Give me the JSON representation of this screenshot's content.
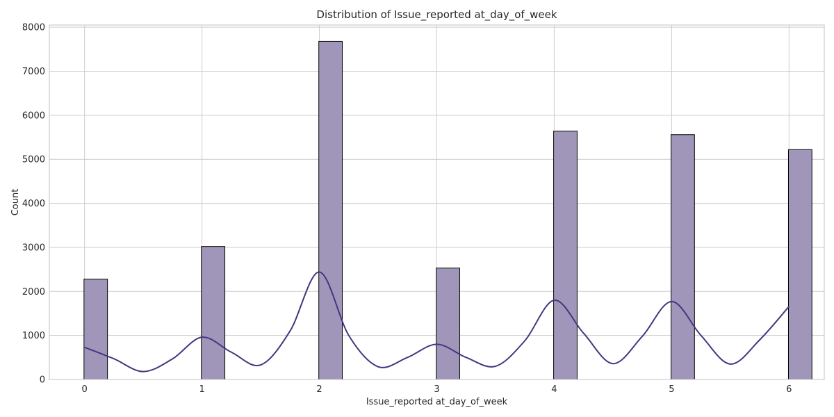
{
  "chart_data": {
    "type": "bar",
    "title": "Distribution of Issue_reported at_day_of_week",
    "xlabel": "Issue_reported at_day_of_week",
    "ylabel": "Count",
    "xlim": [
      -0.3,
      6.3
    ],
    "ylim": [
      0,
      8050
    ],
    "x_ticks": [
      0,
      1,
      2,
      3,
      4,
      5,
      6
    ],
    "y_ticks": [
      0,
      1000,
      2000,
      3000,
      4000,
      5000,
      6000,
      7000,
      8000
    ],
    "bin_width": 0.2,
    "bars": [
      {
        "x": 0,
        "value": 2280
      },
      {
        "x": 1,
        "value": 3020
      },
      {
        "x": 2,
        "value": 7680
      },
      {
        "x": 3,
        "value": 2530
      },
      {
        "x": 4,
        "value": 5640
      },
      {
        "x": 5,
        "value": 5560
      },
      {
        "x": 6,
        "value": 5220
      }
    ],
    "kde_line": {
      "x": [
        0,
        0.25,
        0.5,
        0.75,
        1,
        1.25,
        1.5,
        1.75,
        2,
        2.25,
        2.5,
        2.75,
        3,
        3.25,
        3.5,
        3.75,
        4,
        4.25,
        4.5,
        4.75,
        5,
        5.25,
        5.5,
        5.75,
        6
      ],
      "y": [
        730,
        470,
        180,
        470,
        960,
        620,
        330,
        1100,
        2440,
        1000,
        290,
        500,
        800,
        500,
        300,
        880,
        1800,
        1050,
        360,
        980,
        1770,
        1000,
        350,
        900,
        1660
      ]
    },
    "grid": true,
    "colors": {
      "bar_fill": "#a096ba",
      "bar_edge": "#000000",
      "line": "#45357f",
      "grid": "#cccccc",
      "frame": "#cccccc"
    }
  }
}
